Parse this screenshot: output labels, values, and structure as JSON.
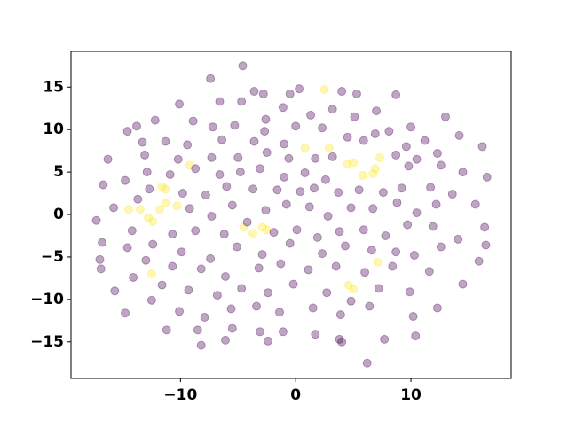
{
  "chart_data": {
    "type": "scatter",
    "xlim": [
      -19.5,
      18.7
    ],
    "ylim": [
      -19.3,
      19.2
    ],
    "xticks": [
      {
        "value": -10,
        "label": "−10"
      },
      0,
      10
    ],
    "yticks": [
      {
        "value": -15,
        "label": "−15"
      },
      {
        "value": -10,
        "label": "−10"
      },
      {
        "value": -5,
        "label": "−5"
      },
      0,
      5,
      10,
      15
    ],
    "alpha": 0.35,
    "series": [
      {
        "color": "#fde725",
        "x": [
          -14.5,
          -13.5,
          -12.8,
          -12.4,
          -11.8,
          -11.3,
          -11.3,
          -11.6,
          -10.3,
          -9.2,
          -12.5,
          -4.5,
          -2.9,
          -2.5,
          -3.7,
          2.5,
          2.9,
          0.8,
          4.5,
          5,
          5.8,
          6.7,
          6.9,
          7.3,
          7.1,
          4.6,
          5
        ],
        "values": [
          0.6,
          0.6,
          -0.4,
          -0.8,
          0.6,
          1.4,
          3,
          3.3,
          1,
          5.8,
          -7,
          -1.5,
          -1.5,
          -1.8,
          -2.2,
          14.7,
          7.8,
          7.8,
          5.9,
          6.1,
          4.6,
          4.8,
          5.4,
          6.7,
          -5.6,
          -8.3,
          -8.8
        ]
      },
      {
        "color": "#440154",
        "x": [
          -4.6,
          -7.4,
          -3.6,
          -2.8,
          0.3,
          -0.5,
          4,
          5.3,
          8.7,
          -10.1,
          -6.6,
          -4.7,
          -2.6,
          -1.1,
          1.3,
          3.2,
          5.1,
          7,
          10,
          13,
          -13.8,
          -12.2,
          -8.9,
          -7.2,
          -5.3,
          -2.7,
          0,
          2.3,
          6.9,
          8.1,
          11.2,
          14.2,
          -14.6,
          -13.3,
          -11.3,
          -9.4,
          -6.4,
          -3.6,
          -1,
          4.5,
          5.9,
          9.6,
          16.2,
          -16.3,
          -13.1,
          -10.2,
          -7.3,
          -5,
          -2.5,
          -0.6,
          1.7,
          3.2,
          8.7,
          10.5,
          12.3,
          -12.9,
          -10.9,
          -8.7,
          -6.6,
          -4.8,
          -3.1,
          -1,
          0.8,
          2.6,
          9.8,
          12.6,
          14.5,
          -14.8,
          -12.7,
          -9.8,
          -7.8,
          -6,
          -3.7,
          -1.6,
          0.4,
          1.6,
          3.7,
          5.5,
          7.6,
          9.2,
          11.7,
          13.6,
          16.6,
          -16.7,
          -15.8,
          -13.7,
          -9.2,
          -7.3,
          -5.5,
          -2.6,
          -0.8,
          1.2,
          2.8,
          4.8,
          6.7,
          8.8,
          10.5,
          12.2,
          15.6,
          -17.3,
          -14.2,
          -10.7,
          -8.7,
          -6.2,
          -4.2,
          -1.9,
          0.1,
          1.9,
          3.8,
          5.9,
          7.8,
          9.7,
          11.9,
          14.1,
          16.4,
          -16.8,
          -14.6,
          -12.4,
          -9.9,
          -7.4,
          -5.1,
          -2.9,
          -0.5,
          2.3,
          4.3,
          6.6,
          8.7,
          10.3,
          12.6,
          16.5,
          -17,
          -13,
          -10.7,
          -8.2,
          -6.1,
          -3.2,
          -1.3,
          1.1,
          3.5,
          6,
          8.4,
          11.6,
          15.9,
          -16.9,
          -14.1,
          -11.6,
          -9.3,
          -6.8,
          -4.7,
          -2.4,
          -0.2,
          2.7,
          4.8,
          7.2,
          9.9,
          14.5,
          -15.7,
          -12.5,
          -10.1,
          -7.9,
          -5.6,
          -3.4,
          -1.4,
          1.5,
          3.9,
          6.4,
          10.2,
          12.3,
          -14.8,
          -11.2,
          -8.5,
          -5.5,
          -3.1,
          -1.1,
          1.7,
          4,
          7.7,
          10.4,
          -6.1,
          -2.4,
          3.8,
          6.2,
          -8.2
        ],
        "values": [
          17.5,
          16,
          14.5,
          14.2,
          14.8,
          14.2,
          14.5,
          14.2,
          14.1,
          13,
          13.3,
          13.3,
          11.2,
          12.6,
          11.7,
          12.4,
          11.5,
          12.2,
          10.3,
          11.5,
          10.4,
          11.1,
          11,
          10.3,
          10.5,
          9.8,
          10.4,
          10.2,
          9.5,
          9.8,
          8.7,
          9.3,
          9.8,
          8.5,
          8.6,
          8.2,
          8.8,
          8.6,
          8.3,
          9.1,
          8.7,
          8,
          8,
          6.5,
          7,
          6.5,
          6.7,
          6.7,
          7.3,
          6.6,
          6.6,
          6.8,
          7,
          6.5,
          7.2,
          5,
          4.7,
          5.4,
          4.7,
          5,
          5.4,
          4.4,
          4.9,
          4.1,
          5.7,
          5.8,
          5,
          4,
          3,
          2.5,
          2.3,
          3.3,
          3,
          2.9,
          2.7,
          3.1,
          2.6,
          2.9,
          2.6,
          3.1,
          3.2,
          2.4,
          4.4,
          3.5,
          0.8,
          1.8,
          0.7,
          -0.2,
          1.1,
          0.5,
          1.2,
          0.9,
          -0.2,
          0.8,
          0.7,
          1.4,
          0.2,
          1.2,
          1.2,
          -0.7,
          -1.9,
          -2.3,
          -1.9,
          -2.3,
          -0.9,
          -2.1,
          -1.8,
          -2.7,
          -2,
          -1.8,
          -2.5,
          -1.2,
          -1.4,
          -2.9,
          -1.5,
          -3.3,
          -3.9,
          -3.5,
          -4.4,
          -5.2,
          -3.8,
          -4.7,
          -3.4,
          -4.6,
          -3.7,
          -4.2,
          -4.4,
          -4.8,
          -3.8,
          -3.6,
          -5.3,
          -5.4,
          -6.1,
          -6.4,
          -7.3,
          -6.3,
          -5.8,
          -6.5,
          -6.1,
          -6.8,
          -6.1,
          -6.7,
          -5.5,
          -6.4,
          -7.4,
          -8.3,
          -8.9,
          -9.5,
          -8.7,
          -9.2,
          -8.2,
          -9.2,
          -10.2,
          -8.7,
          -9.1,
          -8.2,
          -9,
          -10.1,
          -11.4,
          -12.1,
          -11.1,
          -10.8,
          -11.5,
          -11,
          -11.8,
          -10.8,
          -12,
          -11,
          -11.6,
          -13.6,
          -13.6,
          -13.4,
          -13.8,
          -13.8,
          -14.1,
          -15,
          -14.7,
          -14.3,
          -14.8,
          -14.9,
          -14.7,
          -17.5,
          -15.4
        ]
      }
    ]
  }
}
